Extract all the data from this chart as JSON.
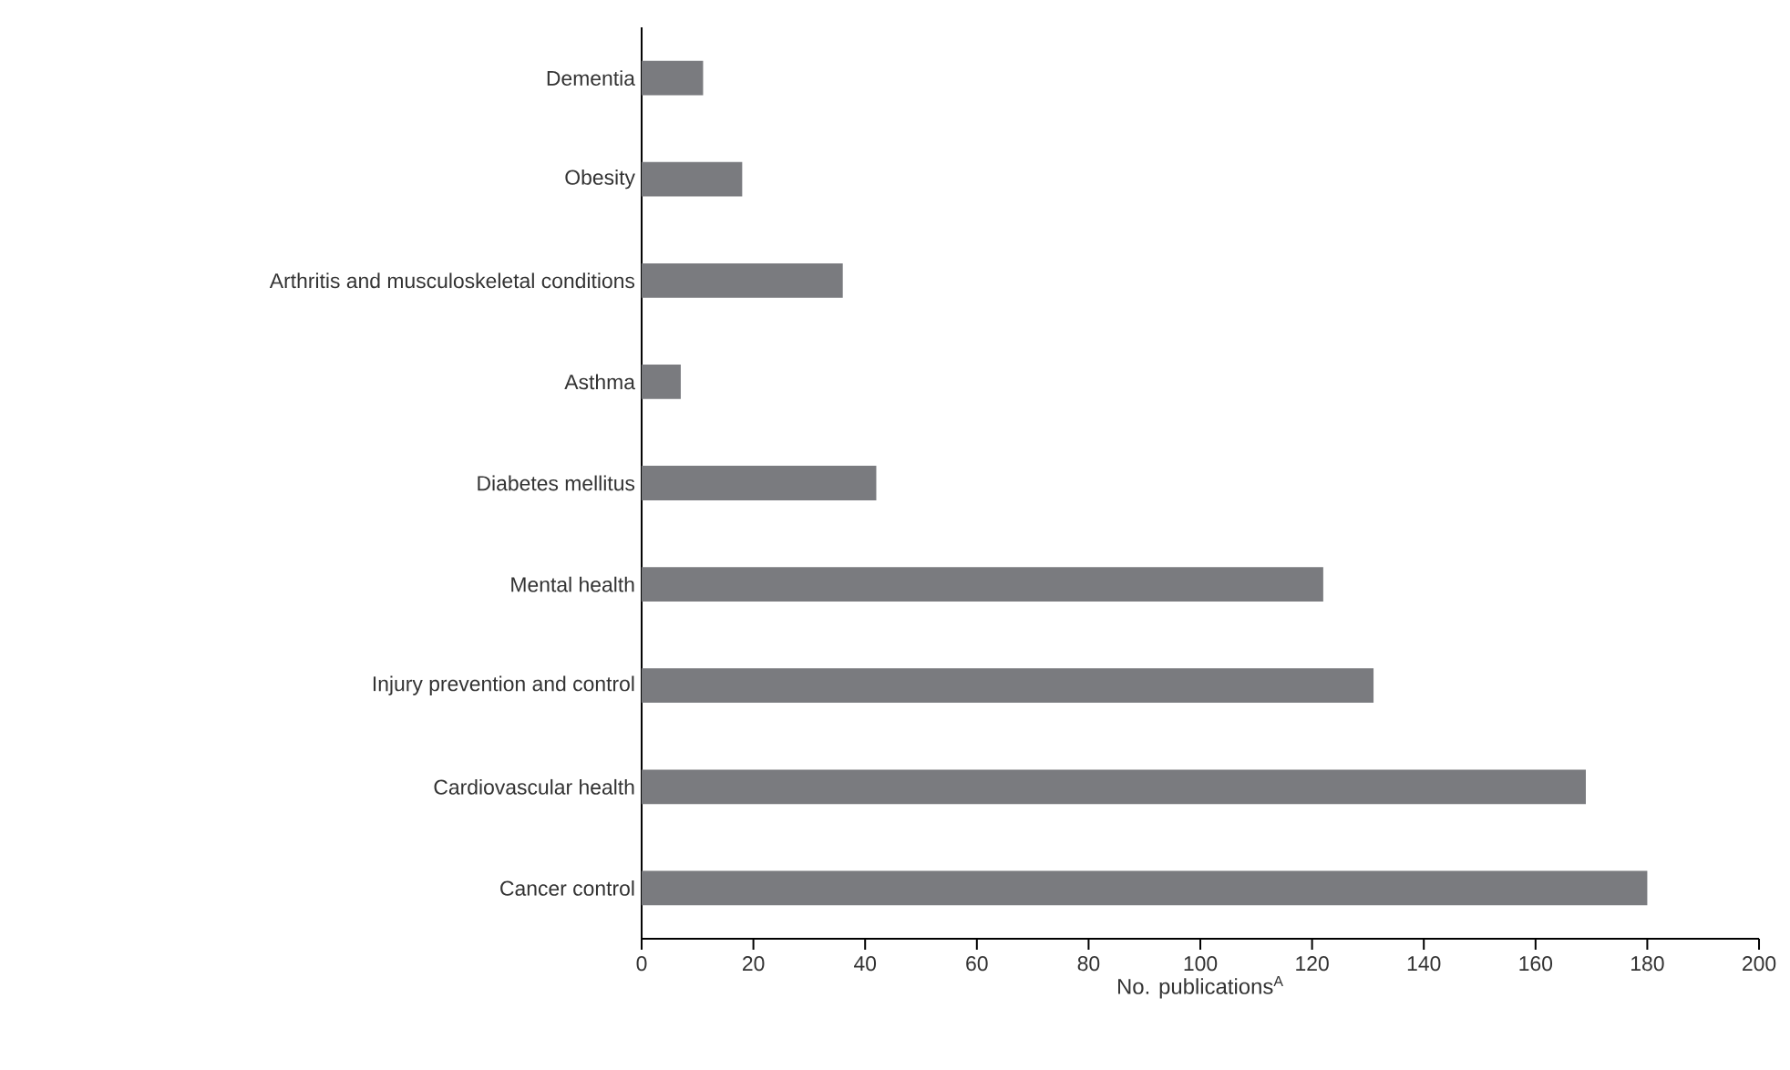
{
  "chart_data": {
    "type": "bar",
    "orientation": "horizontal",
    "xlabel": "No. publications$^{A}$",
    "categories": [
      "Dementia",
      "Obesity",
      "Arthritis and musculoskeletal conditions",
      "Asthma",
      "Diabetes mellitus",
      "Mental health",
      "Injury prevention and control",
      "Cardiovascular health",
      "Cancer control"
    ],
    "values": [
      11,
      18,
      36,
      7,
      42,
      122,
      131,
      169,
      180
    ],
    "color": "#7a7b7f",
    "xlim": [
      0,
      200
    ],
    "xticks": [
      0,
      20,
      40,
      60,
      80,
      100,
      120,
      140,
      160,
      180,
      200
    ],
    "grid": false
  }
}
